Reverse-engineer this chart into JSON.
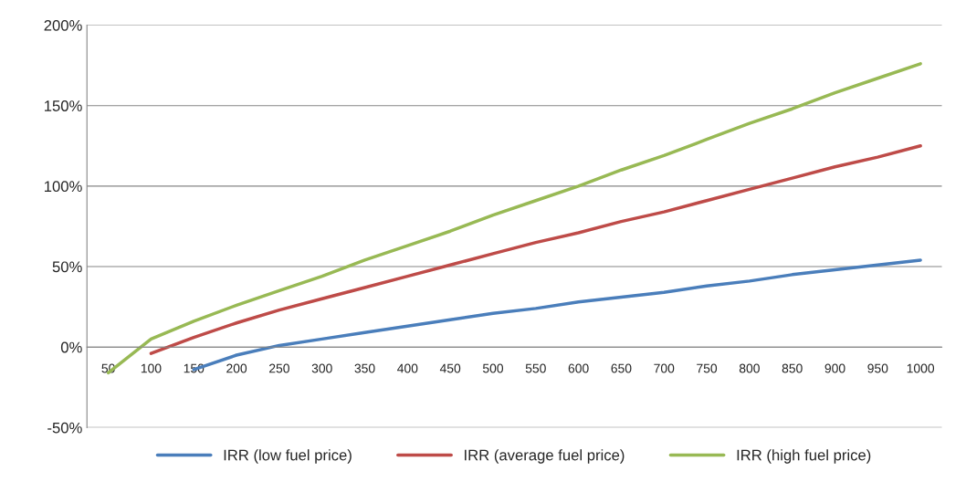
{
  "chart_data": {
    "type": "line",
    "categories": [
      "50",
      "100",
      "150",
      "200",
      "250",
      "300",
      "350",
      "400",
      "450",
      "500",
      "550",
      "600",
      "650",
      "700",
      "750",
      "800",
      "850",
      "900",
      "950",
      "1000"
    ],
    "series": [
      {
        "name": "IRR (low fuel price)",
        "color": "#4a7ebb",
        "values": [
          null,
          null,
          -14,
          -5,
          1,
          5,
          9,
          13,
          17,
          21,
          24,
          28,
          31,
          34,
          38,
          41,
          45,
          48,
          51,
          54
        ]
      },
      {
        "name": "IRR (average fuel price)",
        "color": "#be4b48",
        "values": [
          null,
          -4,
          6,
          15,
          23,
          30,
          37,
          44,
          51,
          58,
          65,
          71,
          78,
          84,
          91,
          98,
          105,
          112,
          118,
          125
        ]
      },
      {
        "name": "IRR (high fuel price)",
        "color": "#98b954",
        "values": [
          -16,
          5,
          16,
          26,
          35,
          44,
          54,
          63,
          72,
          82,
          91,
          100,
          110,
          119,
          129,
          139,
          148,
          158,
          167,
          176
        ]
      }
    ],
    "ylim": [
      -50,
      200
    ],
    "yticks": [
      {
        "value": -50,
        "label": "-50%"
      },
      {
        "value": 0,
        "label": "0%"
      },
      {
        "value": 50,
        "label": "50%"
      },
      {
        "value": 100,
        "label": "100%"
      },
      {
        "value": 150,
        "label": "150%"
      },
      {
        "value": 200,
        "label": "200%"
      }
    ],
    "grid": "y",
    "legend": "bottom",
    "marker": "none",
    "line_style": "solid"
  }
}
